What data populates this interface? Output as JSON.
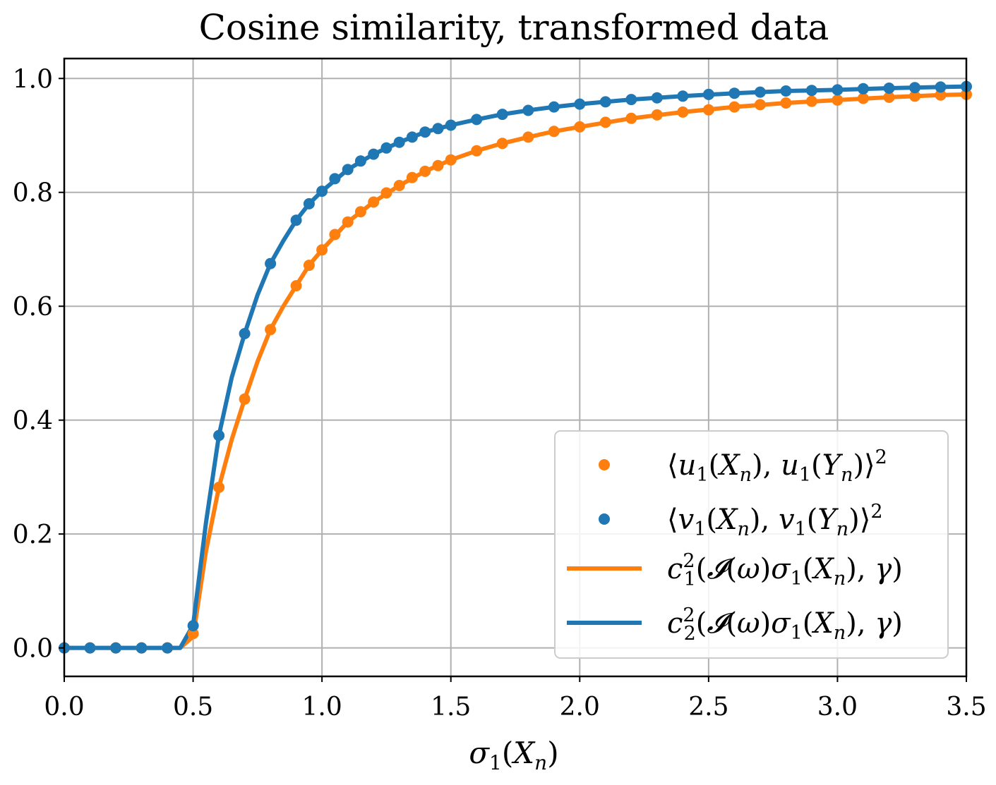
{
  "chart_data": {
    "type": "line",
    "title": "Cosine similarity, transformed data",
    "xlabel": "σ₁(Xₙ)",
    "ylabel": "",
    "xlim": [
      0.0,
      3.5
    ],
    "ylim": [
      -0.05,
      1.035
    ],
    "xticks": [
      0.0,
      0.5,
      1.0,
      1.5,
      2.0,
      2.5,
      3.0,
      3.5
    ],
    "xtick_labels": [
      "0.0",
      "0.5",
      "1.0",
      "1.5",
      "2.0",
      "2.5",
      "3.0",
      "3.5"
    ],
    "yticks": [
      0.0,
      0.2,
      0.4,
      0.6,
      0.8,
      1.0
    ],
    "ytick_labels": [
      "0.0",
      "0.2",
      "0.4",
      "0.6",
      "0.8",
      "1.0"
    ],
    "grid": true,
    "legend_position": "lower-right",
    "series": [
      {
        "name": "⟨u₁(Xₙ), u₁(Yₙ)⟩²",
        "kind": "scatter",
        "color": "#ff7f0e",
        "x": [
          0.0,
          0.1,
          0.2,
          0.3,
          0.4,
          0.5,
          0.6,
          0.7,
          0.8,
          0.9,
          0.95,
          1.0,
          1.05,
          1.1,
          1.15,
          1.2,
          1.25,
          1.3,
          1.35,
          1.4,
          1.45,
          1.5,
          1.6,
          1.7,
          1.8,
          1.9,
          2.0,
          2.1,
          2.2,
          2.3,
          2.4,
          2.5,
          2.6,
          2.7,
          2.8,
          2.9,
          3.0,
          3.1,
          3.2,
          3.3,
          3.4,
          3.5
        ],
        "y": [
          0.0,
          0.0,
          0.0,
          0.0,
          0.0,
          0.025,
          0.282,
          0.437,
          0.559,
          0.636,
          0.672,
          0.699,
          0.726,
          0.748,
          0.766,
          0.783,
          0.799,
          0.812,
          0.826,
          0.837,
          0.847,
          0.857,
          0.873,
          0.886,
          0.897,
          0.907,
          0.915,
          0.923,
          0.93,
          0.936,
          0.941,
          0.945,
          0.95,
          0.954,
          0.957,
          0.96,
          0.962,
          0.965,
          0.967,
          0.969,
          0.971,
          0.972
        ]
      },
      {
        "name": "⟨v₁(Xₙ), v₁(Yₙ)⟩²",
        "kind": "scatter",
        "color": "#1f77b4",
        "x": [
          0.0,
          0.1,
          0.2,
          0.3,
          0.4,
          0.5,
          0.6,
          0.7,
          0.8,
          0.9,
          0.95,
          1.0,
          1.05,
          1.1,
          1.15,
          1.2,
          1.25,
          1.3,
          1.35,
          1.4,
          1.45,
          1.5,
          1.6,
          1.7,
          1.8,
          1.9,
          2.0,
          2.1,
          2.2,
          2.3,
          2.4,
          2.5,
          2.6,
          2.7,
          2.8,
          2.9,
          3.0,
          3.1,
          3.2,
          3.3,
          3.4,
          3.5
        ],
        "y": [
          0.0,
          0.0,
          0.0,
          0.0,
          0.0,
          0.039,
          0.373,
          0.552,
          0.675,
          0.751,
          0.78,
          0.802,
          0.824,
          0.84,
          0.855,
          0.867,
          0.878,
          0.888,
          0.897,
          0.906,
          0.912,
          0.918,
          0.928,
          0.937,
          0.944,
          0.95,
          0.955,
          0.959,
          0.963,
          0.966,
          0.969,
          0.972,
          0.974,
          0.976,
          0.978,
          0.979,
          0.98,
          0.982,
          0.983,
          0.984,
          0.985,
          0.986
        ]
      },
      {
        "name": "c₁²(𝓘(ω)σ₁(Xₙ), γ)",
        "kind": "line",
        "color": "#ff7f0e",
        "x": [
          0.0,
          0.4,
          0.45,
          0.5,
          0.55,
          0.6,
          0.65,
          0.7,
          0.75,
          0.8,
          0.85,
          0.9,
          0.95,
          1.0,
          1.1,
          1.2,
          1.3,
          1.4,
          1.5,
          1.6,
          1.7,
          1.8,
          1.9,
          2.0,
          2.2,
          2.4,
          2.6,
          2.8,
          3.0,
          3.2,
          3.4,
          3.5
        ],
        "y": [
          0.0,
          0.0,
          0.0,
          0.02,
          0.17,
          0.282,
          0.366,
          0.437,
          0.503,
          0.559,
          0.6,
          0.636,
          0.672,
          0.699,
          0.748,
          0.783,
          0.812,
          0.837,
          0.857,
          0.873,
          0.886,
          0.897,
          0.907,
          0.915,
          0.93,
          0.941,
          0.95,
          0.957,
          0.962,
          0.967,
          0.971,
          0.972
        ]
      },
      {
        "name": "c₂²(𝓘(ω)σ₁(Xₙ), γ)",
        "kind": "line",
        "color": "#1f77b4",
        "x": [
          0.0,
          0.4,
          0.45,
          0.5,
          0.55,
          0.6,
          0.65,
          0.7,
          0.75,
          0.8,
          0.85,
          0.9,
          0.95,
          1.0,
          1.1,
          1.2,
          1.3,
          1.4,
          1.5,
          1.6,
          1.7,
          1.8,
          1.9,
          2.0,
          2.2,
          2.4,
          2.6,
          2.8,
          3.0,
          3.2,
          3.4,
          3.5
        ],
        "y": [
          0.0,
          0.0,
          0.0,
          0.04,
          0.22,
          0.373,
          0.475,
          0.552,
          0.62,
          0.675,
          0.715,
          0.751,
          0.78,
          0.802,
          0.84,
          0.867,
          0.888,
          0.906,
          0.918,
          0.928,
          0.937,
          0.944,
          0.95,
          0.955,
          0.963,
          0.969,
          0.974,
          0.978,
          0.98,
          0.983,
          0.985,
          0.986
        ]
      }
    ]
  }
}
